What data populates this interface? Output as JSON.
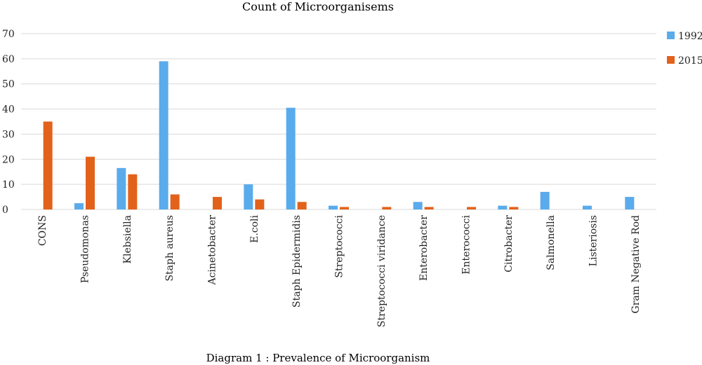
{
  "chart_data": {
    "type": "bar",
    "title": "Count of Microorganisems",
    "caption": "Diagram 1 : Prevalence of Microorganism",
    "xlabel": "",
    "ylabel": "",
    "ylim": [
      0,
      70
    ],
    "yticks": [
      0,
      10,
      20,
      30,
      40,
      50,
      60,
      70
    ],
    "grid": true,
    "legend_position": "right",
    "categories": [
      "CONS",
      "Pseudomonas",
      "Klebsiella",
      "Staph aureus",
      "Acinetobacter",
      "E.coli",
      "Staph Epidermidis",
      "Streptococci",
      "Streptococci viridance",
      "Enterobacter",
      "Enterococci",
      "Citrobacter",
      "Salmonella",
      "Listeriosis",
      "Gram Negative Rod"
    ],
    "series": [
      {
        "name": "1992",
        "color": "#5aabec",
        "values": [
          0,
          2.5,
          16.5,
          59,
          0,
          10,
          40.5,
          1.5,
          0,
          3,
          0,
          1.5,
          7,
          1.5,
          5
        ]
      },
      {
        "name": "2015",
        "color": "#e3621b",
        "values": [
          35,
          21,
          14,
          6,
          5,
          4,
          3,
          1,
          1,
          1,
          1,
          1,
          0,
          0,
          0
        ]
      }
    ]
  }
}
